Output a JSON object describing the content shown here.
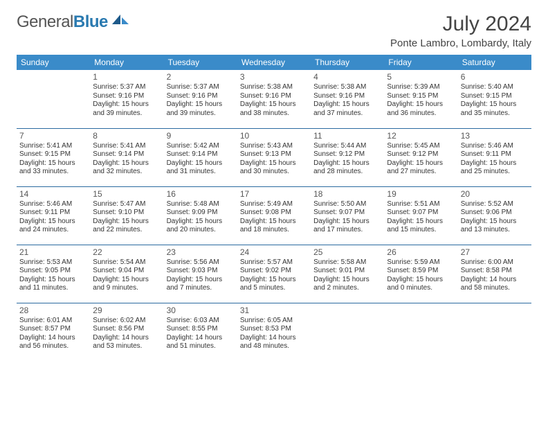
{
  "logo": {
    "text1": "General",
    "text2": "Blue"
  },
  "title": "July 2024",
  "location": "Ponte Lambro, Lombardy, Italy",
  "colors": {
    "header_bg": "#3a8bc9",
    "header_text": "#ffffff",
    "row_border": "#2a6aa0",
    "logo_blue": "#2a7ab0",
    "body_text": "#333333"
  },
  "daynames": [
    "Sunday",
    "Monday",
    "Tuesday",
    "Wednesday",
    "Thursday",
    "Friday",
    "Saturday"
  ],
  "weeks": [
    [
      null,
      {
        "n": "1",
        "sr": "Sunrise: 5:37 AM",
        "ss": "Sunset: 9:16 PM",
        "dl1": "Daylight: 15 hours",
        "dl2": "and 39 minutes."
      },
      {
        "n": "2",
        "sr": "Sunrise: 5:37 AM",
        "ss": "Sunset: 9:16 PM",
        "dl1": "Daylight: 15 hours",
        "dl2": "and 39 minutes."
      },
      {
        "n": "3",
        "sr": "Sunrise: 5:38 AM",
        "ss": "Sunset: 9:16 PM",
        "dl1": "Daylight: 15 hours",
        "dl2": "and 38 minutes."
      },
      {
        "n": "4",
        "sr": "Sunrise: 5:38 AM",
        "ss": "Sunset: 9:16 PM",
        "dl1": "Daylight: 15 hours",
        "dl2": "and 37 minutes."
      },
      {
        "n": "5",
        "sr": "Sunrise: 5:39 AM",
        "ss": "Sunset: 9:15 PM",
        "dl1": "Daylight: 15 hours",
        "dl2": "and 36 minutes."
      },
      {
        "n": "6",
        "sr": "Sunrise: 5:40 AM",
        "ss": "Sunset: 9:15 PM",
        "dl1": "Daylight: 15 hours",
        "dl2": "and 35 minutes."
      }
    ],
    [
      {
        "n": "7",
        "sr": "Sunrise: 5:41 AM",
        "ss": "Sunset: 9:15 PM",
        "dl1": "Daylight: 15 hours",
        "dl2": "and 33 minutes."
      },
      {
        "n": "8",
        "sr": "Sunrise: 5:41 AM",
        "ss": "Sunset: 9:14 PM",
        "dl1": "Daylight: 15 hours",
        "dl2": "and 32 minutes."
      },
      {
        "n": "9",
        "sr": "Sunrise: 5:42 AM",
        "ss": "Sunset: 9:14 PM",
        "dl1": "Daylight: 15 hours",
        "dl2": "and 31 minutes."
      },
      {
        "n": "10",
        "sr": "Sunrise: 5:43 AM",
        "ss": "Sunset: 9:13 PM",
        "dl1": "Daylight: 15 hours",
        "dl2": "and 30 minutes."
      },
      {
        "n": "11",
        "sr": "Sunrise: 5:44 AM",
        "ss": "Sunset: 9:12 PM",
        "dl1": "Daylight: 15 hours",
        "dl2": "and 28 minutes."
      },
      {
        "n": "12",
        "sr": "Sunrise: 5:45 AM",
        "ss": "Sunset: 9:12 PM",
        "dl1": "Daylight: 15 hours",
        "dl2": "and 27 minutes."
      },
      {
        "n": "13",
        "sr": "Sunrise: 5:46 AM",
        "ss": "Sunset: 9:11 PM",
        "dl1": "Daylight: 15 hours",
        "dl2": "and 25 minutes."
      }
    ],
    [
      {
        "n": "14",
        "sr": "Sunrise: 5:46 AM",
        "ss": "Sunset: 9:11 PM",
        "dl1": "Daylight: 15 hours",
        "dl2": "and 24 minutes."
      },
      {
        "n": "15",
        "sr": "Sunrise: 5:47 AM",
        "ss": "Sunset: 9:10 PM",
        "dl1": "Daylight: 15 hours",
        "dl2": "and 22 minutes."
      },
      {
        "n": "16",
        "sr": "Sunrise: 5:48 AM",
        "ss": "Sunset: 9:09 PM",
        "dl1": "Daylight: 15 hours",
        "dl2": "and 20 minutes."
      },
      {
        "n": "17",
        "sr": "Sunrise: 5:49 AM",
        "ss": "Sunset: 9:08 PM",
        "dl1": "Daylight: 15 hours",
        "dl2": "and 18 minutes."
      },
      {
        "n": "18",
        "sr": "Sunrise: 5:50 AM",
        "ss": "Sunset: 9:07 PM",
        "dl1": "Daylight: 15 hours",
        "dl2": "and 17 minutes."
      },
      {
        "n": "19",
        "sr": "Sunrise: 5:51 AM",
        "ss": "Sunset: 9:07 PM",
        "dl1": "Daylight: 15 hours",
        "dl2": "and 15 minutes."
      },
      {
        "n": "20",
        "sr": "Sunrise: 5:52 AM",
        "ss": "Sunset: 9:06 PM",
        "dl1": "Daylight: 15 hours",
        "dl2": "and 13 minutes."
      }
    ],
    [
      {
        "n": "21",
        "sr": "Sunrise: 5:53 AM",
        "ss": "Sunset: 9:05 PM",
        "dl1": "Daylight: 15 hours",
        "dl2": "and 11 minutes."
      },
      {
        "n": "22",
        "sr": "Sunrise: 5:54 AM",
        "ss": "Sunset: 9:04 PM",
        "dl1": "Daylight: 15 hours",
        "dl2": "and 9 minutes."
      },
      {
        "n": "23",
        "sr": "Sunrise: 5:56 AM",
        "ss": "Sunset: 9:03 PM",
        "dl1": "Daylight: 15 hours",
        "dl2": "and 7 minutes."
      },
      {
        "n": "24",
        "sr": "Sunrise: 5:57 AM",
        "ss": "Sunset: 9:02 PM",
        "dl1": "Daylight: 15 hours",
        "dl2": "and 5 minutes."
      },
      {
        "n": "25",
        "sr": "Sunrise: 5:58 AM",
        "ss": "Sunset: 9:01 PM",
        "dl1": "Daylight: 15 hours",
        "dl2": "and 2 minutes."
      },
      {
        "n": "26",
        "sr": "Sunrise: 5:59 AM",
        "ss": "Sunset: 8:59 PM",
        "dl1": "Daylight: 15 hours",
        "dl2": "and 0 minutes."
      },
      {
        "n": "27",
        "sr": "Sunrise: 6:00 AM",
        "ss": "Sunset: 8:58 PM",
        "dl1": "Daylight: 14 hours",
        "dl2": "and 58 minutes."
      }
    ],
    [
      {
        "n": "28",
        "sr": "Sunrise: 6:01 AM",
        "ss": "Sunset: 8:57 PM",
        "dl1": "Daylight: 14 hours",
        "dl2": "and 56 minutes."
      },
      {
        "n": "29",
        "sr": "Sunrise: 6:02 AM",
        "ss": "Sunset: 8:56 PM",
        "dl1": "Daylight: 14 hours",
        "dl2": "and 53 minutes."
      },
      {
        "n": "30",
        "sr": "Sunrise: 6:03 AM",
        "ss": "Sunset: 8:55 PM",
        "dl1": "Daylight: 14 hours",
        "dl2": "and 51 minutes."
      },
      {
        "n": "31",
        "sr": "Sunrise: 6:05 AM",
        "ss": "Sunset: 8:53 PM",
        "dl1": "Daylight: 14 hours",
        "dl2": "and 48 minutes."
      },
      null,
      null,
      null
    ]
  ]
}
